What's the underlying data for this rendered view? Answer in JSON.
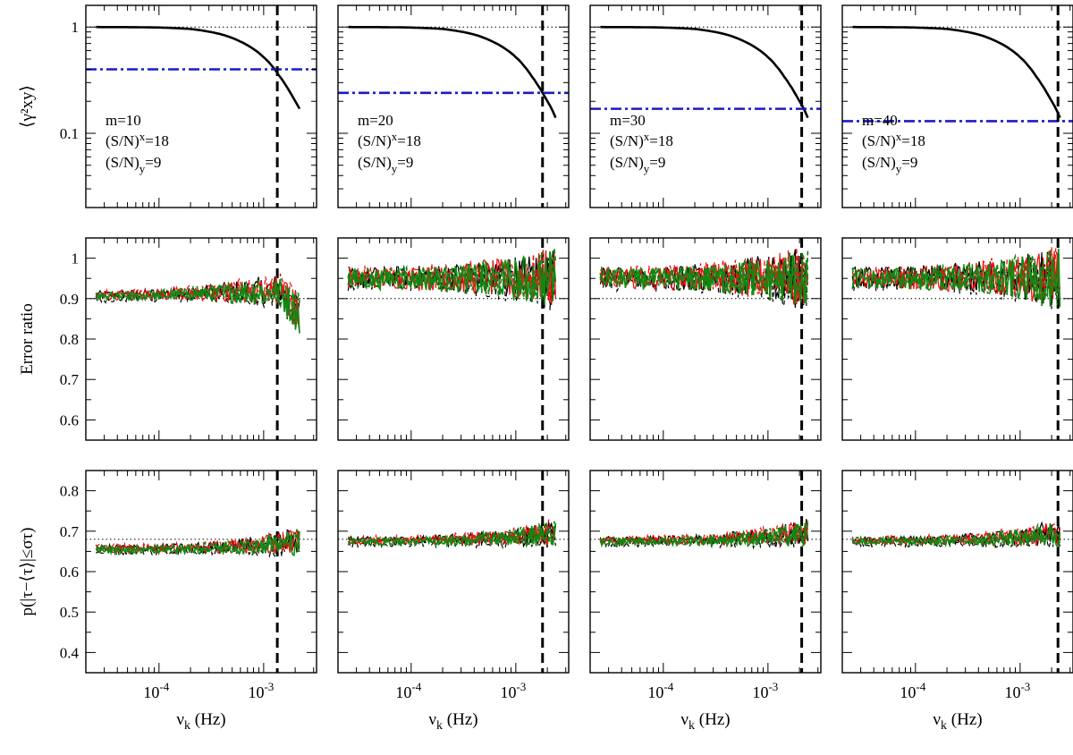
{
  "figure": {
    "ylabels": [
      "⟨γ²xy⟩",
      "Error ratio",
      "p(|τ−⟨τ⟩|≤στ)"
    ],
    "xlabel_main": "ν",
    "xlabel_sub": "k",
    "xlabel_unit": " (Hz)"
  },
  "chart_data": {
    "type": "line",
    "layout": {
      "rows": 3,
      "columns": 4
    },
    "x_axis": {
      "scale": "log",
      "range": [
        2e-05,
        0.0032
      ],
      "tick_labels": [
        {
          "value": 0.0001,
          "base": "10",
          "exp": "-4"
        },
        {
          "value": 0.001,
          "base": "10",
          "exp": "-3"
        }
      ]
    },
    "rows": [
      {
        "name": "coherence",
        "y_scale": "log",
        "ylim": [
          0.02,
          1.6
        ],
        "y_ticks": [
          {
            "value": 1,
            "label": "1"
          },
          {
            "value": 0.1,
            "label": "0.1"
          }
        ],
        "reference_line": 1
      },
      {
        "name": "error-ratio",
        "y_scale": "linear",
        "ylim": [
          0.55,
          1.05
        ],
        "y_ticks": [
          {
            "value": 0.6,
            "label": "0.6"
          },
          {
            "value": 0.7,
            "label": "0.7"
          },
          {
            "value": 0.8,
            "label": "0.8"
          },
          {
            "value": 0.9,
            "label": "0.9"
          },
          {
            "value": 1.0,
            "label": "1"
          }
        ],
        "reference_line": 0.9
      },
      {
        "name": "probability",
        "y_scale": "linear",
        "ylim": [
          0.35,
          0.85
        ],
        "y_ticks": [
          {
            "value": 0.4,
            "label": "0.4"
          },
          {
            "value": 0.5,
            "label": "0.5"
          },
          {
            "value": 0.6,
            "label": "0.6"
          },
          {
            "value": 0.7,
            "label": "0.7"
          },
          {
            "value": 0.8,
            "label": "0.8"
          }
        ],
        "reference_line": 0.68
      }
    ],
    "columns": [
      {
        "m": "m=10",
        "sn_x": "=18",
        "sn_y": "=9",
        "threshold": 0.4,
        "cutoff": 0.00135,
        "x_end": 0.0022
      },
      {
        "m": "m=20",
        "sn_x": "=18",
        "sn_y": "=9",
        "threshold": 0.24,
        "cutoff": 0.0018,
        "x_end": 0.0024
      },
      {
        "m": "m=30",
        "sn_x": "=18",
        "sn_y": "=9",
        "threshold": 0.17,
        "cutoff": 0.0021,
        "x_end": 0.0024
      },
      {
        "m": "m=40",
        "sn_x": "=18",
        "sn_y": "=9",
        "threshold": 0.13,
        "cutoff": 0.0023,
        "x_end": 0.0024
      }
    ],
    "coherence_curve": {
      "x": [
        2.5e-05,
        5e-05,
        0.0001,
        0.0002,
        0.0004,
        0.0006,
        0.0008,
        0.001,
        0.0012,
        0.0014,
        0.0016,
        0.0018,
        0.002,
        0.0022,
        0.0024
      ],
      "y": [
        1.0,
        0.998,
        0.99,
        0.96,
        0.85,
        0.73,
        0.62,
        0.52,
        0.43,
        0.35,
        0.29,
        0.24,
        0.2,
        0.17,
        0.14
      ]
    },
    "series_colors": {
      "black": "#000000",
      "red": "#ee1111",
      "green": "#118811",
      "threshold": "#1a1acc"
    }
  }
}
